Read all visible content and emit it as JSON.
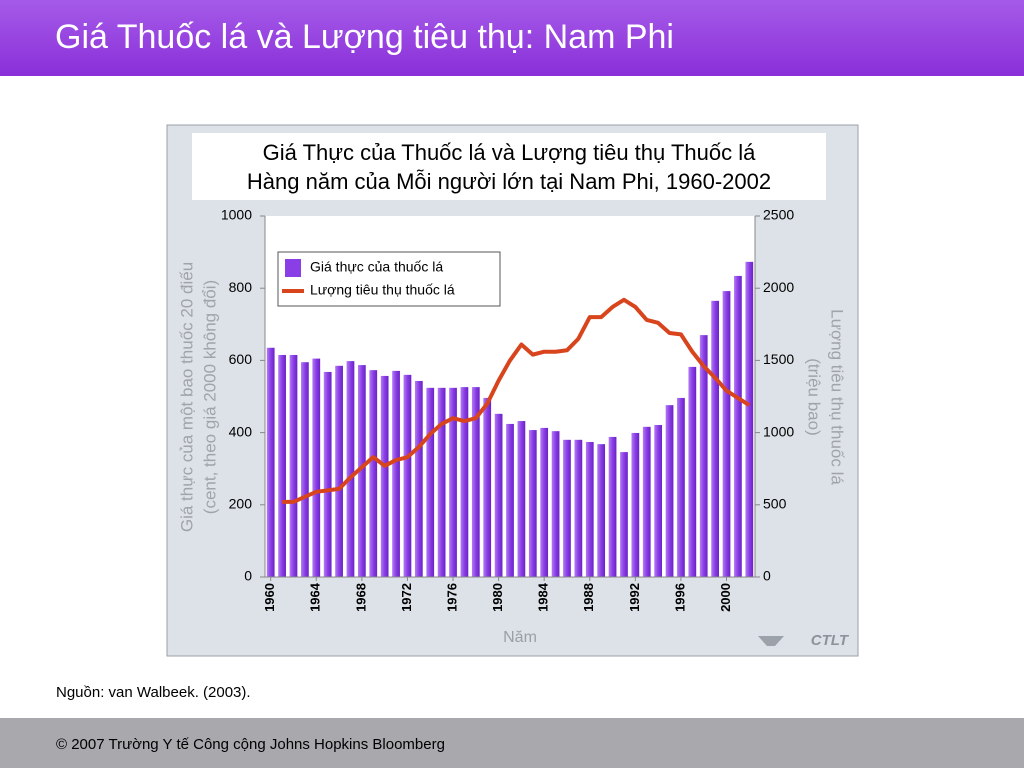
{
  "header": {
    "title": "Giá Thuốc lá và Lượng tiêu thụ: Nam Phi"
  },
  "chart_data": {
    "type": "bar",
    "title": [
      "Giá Thực của Thuốc lá và Lượng tiêu thụ Thuốc lá",
      "Hàng năm của Mỗi người lớn tại Nam Phi, 1960-2002"
    ],
    "xlabel": "Năm",
    "ylabel": [
      "Giá thực của một bao thuốc 20 điếu",
      "(cent, theo giá 2000 không đổi)"
    ],
    "y2label": [
      "Lượng tiêu thụ thuốc lá",
      "(triệu bao)"
    ],
    "x": [
      1960,
      1961,
      1962,
      1963,
      1964,
      1965,
      1966,
      1967,
      1968,
      1969,
      1970,
      1971,
      1972,
      1973,
      1974,
      1975,
      1976,
      1977,
      1978,
      1979,
      1980,
      1981,
      1982,
      1983,
      1984,
      1985,
      1986,
      1987,
      1988,
      1989,
      1990,
      1991,
      1992,
      1993,
      1994,
      1995,
      1996,
      1997,
      1998,
      1999,
      2000,
      2001,
      2002
    ],
    "xlim": [
      1959.5,
      2002.5
    ],
    "xticks": [
      1960,
      1964,
      1968,
      1972,
      1976,
      1980,
      1984,
      1988,
      1992,
      1996,
      2000
    ],
    "ylim": [
      0,
      1000
    ],
    "yticks": [
      0,
      200,
      400,
      600,
      800,
      1000
    ],
    "y2lim": [
      0,
      2500
    ],
    "y2ticks": [
      0,
      500,
      1000,
      1500,
      2000,
      2500
    ],
    "legend": "upper-left",
    "series": [
      {
        "name": "Giá thực của thuốc lá",
        "type": "bar",
        "axis": "y",
        "color": "#8a3ee6",
        "values": [
          635,
          615,
          615,
          595,
          605,
          568,
          585,
          598,
          587,
          573,
          557,
          571,
          560,
          543,
          524,
          524,
          524,
          526,
          526,
          496,
          452,
          424,
          432,
          407,
          413,
          404,
          380,
          380,
          374,
          368,
          388,
          346,
          399,
          416,
          421,
          476,
          496,
          582,
          670,
          765,
          792,
          834,
          873
        ]
      },
      {
        "name": "Lượng tiêu thụ thuốc lá",
        "type": "line",
        "axis": "y2",
        "color": "#d8441c",
        "values": [
          null,
          520,
          520,
          555,
          590,
          600,
          610,
          690,
          760,
          830,
          770,
          810,
          830,
          900,
          990,
          1060,
          1100,
          1080,
          1100,
          1200,
          1360,
          1500,
          1610,
          1540,
          1560,
          1560,
          1570,
          1650,
          1800,
          1800,
          1870,
          1920,
          1870,
          1780,
          1760,
          1690,
          1680,
          1560,
          1460,
          1380,
          1290,
          1240,
          1190
        ]
      }
    ],
    "logo": "CTLT"
  },
  "source": "Nguồn: van Walbeek. (2003).",
  "footer": "© 2007 Trường Y tế Công cộng Johns Hopkins Bloomberg"
}
